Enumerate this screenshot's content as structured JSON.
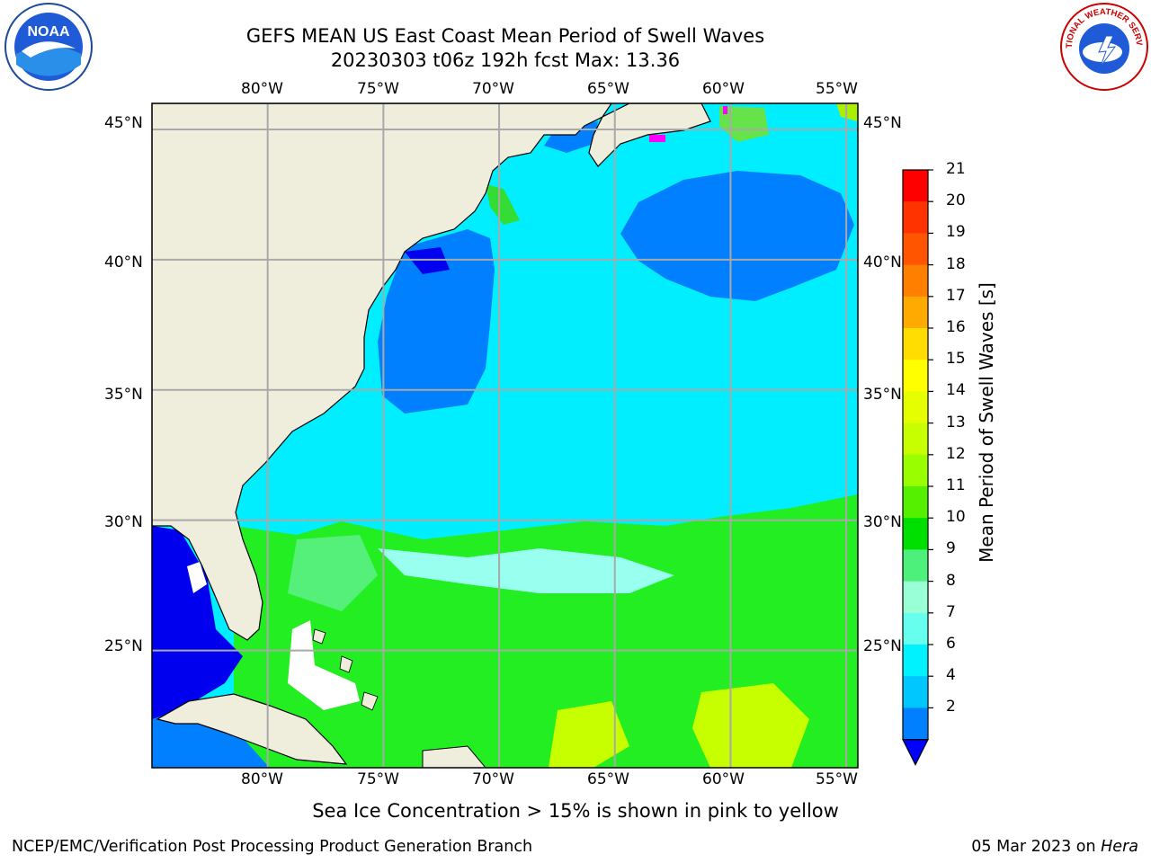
{
  "title": {
    "line1": "GEFS MEAN US East Coast Mean Period of Swell Waves",
    "line2": "20230303 t06z 192h fcst   Max: 13.36"
  },
  "logos": {
    "left": {
      "icon": "noaa-logo",
      "text": "NOAA"
    },
    "right": {
      "icon": "nws-logo",
      "text": "NATIONAL WEATHER SERVICE"
    }
  },
  "map": {
    "lon_labels": [
      "80°W",
      "75°W",
      "70°W",
      "65°W",
      "60°W",
      "55°W"
    ],
    "lat_labels": [
      "45°N",
      "40°N",
      "35°N",
      "30°N",
      "25°N"
    ],
    "lon_range": [
      -85,
      -54.5
    ],
    "lat_range": [
      20.5,
      46
    ],
    "grid_lons": [
      -80,
      -75,
      -70,
      -65,
      -60,
      -55
    ],
    "grid_lats": [
      45,
      40,
      35,
      30,
      25
    ],
    "land_color": "#efeedd"
  },
  "colorbar": {
    "label": "Mean Period of Swell Waves [s]",
    "ticks": [
      "21",
      "20",
      "19",
      "18",
      "17",
      "16",
      "15",
      "14",
      "13",
      "12",
      "11",
      "10",
      "9",
      "8",
      "7",
      "6",
      "4",
      "2"
    ],
    "colors": [
      "#ff0000",
      "#ff3300",
      "#ff5500",
      "#ff7f00",
      "#ffaa00",
      "#ffdd00",
      "#ffff00",
      "#e6ff00",
      "#c8ff00",
      "#99ff00",
      "#55f000",
      "#00e000",
      "#4cf07a",
      "#99ffd5",
      "#66ffee",
      "#00f2ff",
      "#00c8ff",
      "#0080ff"
    ],
    "extend_color": "#0000ff"
  },
  "note": "Sea Ice Concentration > 15% is shown in pink to yellow",
  "footer": {
    "left": "NCEP/EMC/Verification Post Processing Product Generation Branch",
    "right_date": "05 Mar 2023 on ",
    "right_host": "Hera"
  }
}
